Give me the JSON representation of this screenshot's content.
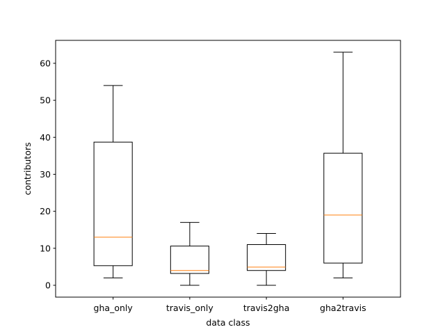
{
  "chart_data": {
    "type": "boxplot",
    "title": "",
    "xlabel": "data class",
    "ylabel": "contributors",
    "ylim": [
      -3.2,
      66.2
    ],
    "yticks": [
      0,
      10,
      20,
      30,
      40,
      50,
      60
    ],
    "grid": false,
    "categories": [
      "gha_only",
      "travis_only",
      "travis2gha",
      "gha2travis"
    ],
    "boxes": [
      {
        "name": "gha_only",
        "whisker_low": 2,
        "q1": 5.3,
        "median": 13,
        "q3": 38.7,
        "whisker_high": 54
      },
      {
        "name": "travis_only",
        "whisker_low": 0,
        "q1": 3.2,
        "median": 4,
        "q3": 10.6,
        "whisker_high": 17
      },
      {
        "name": "travis2gha",
        "whisker_low": 0,
        "q1": 4,
        "median": 4.9,
        "q3": 11,
        "whisker_high": 14
      },
      {
        "name": "gha2travis",
        "whisker_low": 2,
        "q1": 6,
        "median": 19,
        "q3": 35.7,
        "whisker_high": 63
      }
    ],
    "colors": {
      "box": "#000000",
      "median": "#ff7f0e",
      "axes": "#000000"
    }
  }
}
